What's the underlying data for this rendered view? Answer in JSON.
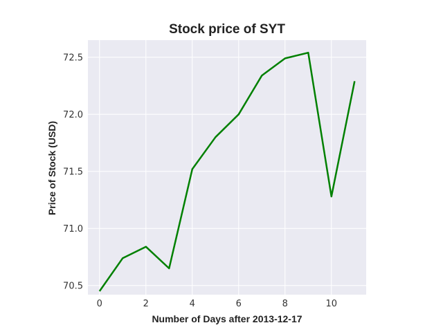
{
  "chart_data": {
    "type": "line",
    "title": "Stock price of SYT",
    "xlabel": "Number of Days after 2013-12-17",
    "ylabel": "Price of Stock (USD)",
    "x": [
      0,
      1,
      2,
      3,
      4,
      5,
      6,
      7,
      8,
      9,
      10,
      11
    ],
    "series": [
      {
        "values": [
          70.45,
          70.74,
          70.84,
          70.65,
          71.52,
          71.8,
          72.0,
          72.34,
          72.49,
          72.54,
          71.28,
          72.29
        ],
        "color": "#008000"
      }
    ],
    "xlim": [
      -0.5,
      11.5
    ],
    "ylim": [
      70.42,
      72.65
    ],
    "xticks": [
      0,
      2,
      4,
      6,
      8,
      10
    ],
    "yticks": [
      70.5,
      71.0,
      71.5,
      72.0,
      72.5
    ],
    "xtick_labels": [
      "0",
      "2",
      "4",
      "6",
      "8",
      "10"
    ],
    "ytick_labels": [
      "70.5",
      "71.0",
      "71.5",
      "72.0",
      "72.5"
    ],
    "grid": true,
    "background_color": "#eaeaf2",
    "grid_color": "#ffffff"
  }
}
